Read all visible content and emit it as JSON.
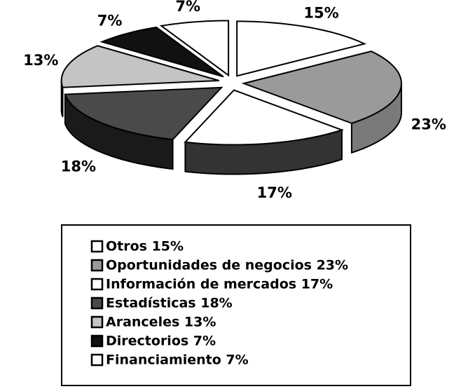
{
  "chart_data": {
    "type": "pie3d",
    "categories": [
      "Otros 15%",
      "Oportunidades de negocios 23%",
      "Información de mercados 17%",
      "Estadísticas 18%",
      "Aranceles 13%",
      "Directorios 7%",
      "Financiamiento 7%"
    ],
    "values": [
      15,
      23,
      17,
      18,
      13,
      7,
      7
    ],
    "value_labels": [
      "15%",
      "23%",
      "17%",
      "18%",
      "13%",
      "7%",
      "7%"
    ],
    "colors": [
      "#ffffff",
      "#9a9a9a",
      "#ffffff",
      "#4a4a4a",
      "#c4c4c4",
      "#111111",
      "#ffffff"
    ],
    "side_colors": [
      "#ffffff",
      "#7a7a7a",
      "#333333",
      "#1a1a1a",
      "#222222",
      "#111111",
      "#ffffff"
    ]
  }
}
